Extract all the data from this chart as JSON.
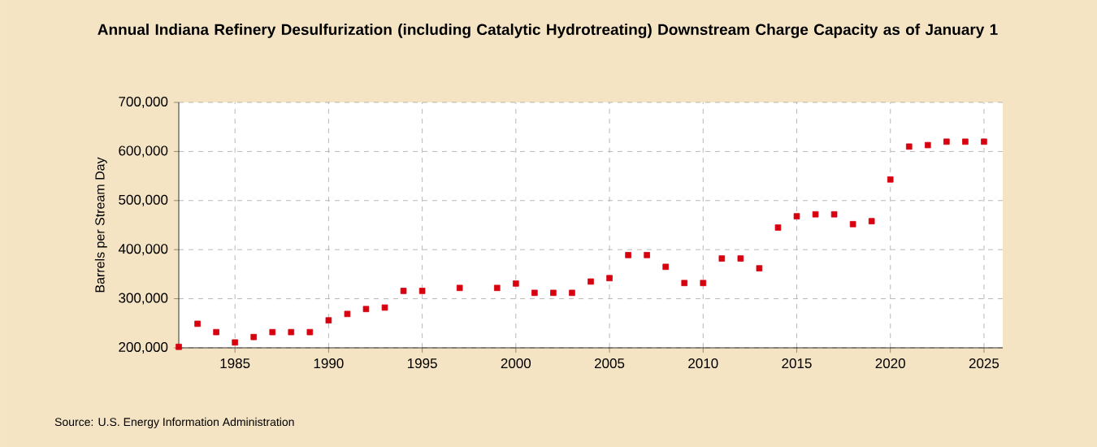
{
  "chart_data": {
    "type": "scatter",
    "title": "Annual Indiana Refinery Desulfurization (including Catalytic Hydrotreating) Downstream Charge Capacity as of January 1",
    "ylabel": "Barrels per Stream Day",
    "annotations": [
      "Source: U.S. Energy Information Administration"
    ],
    "x": [
      1982,
      1983,
      1984,
      1985,
      1986,
      1987,
      1988,
      1989,
      1990,
      1991,
      1992,
      1993,
      1994,
      1995,
      1997,
      1999,
      2000,
      2001,
      2002,
      2003,
      2004,
      2005,
      2006,
      2007,
      2008,
      2009,
      2010,
      2011,
      2012,
      2013,
      2014,
      2015,
      2016,
      2017,
      2018,
      2019,
      2020,
      2021,
      2022,
      2023,
      2024,
      2025
    ],
    "series": [
      {
        "color": "#d7000f",
        "values": [
          202000,
          249000,
          232000,
          211000,
          222000,
          232000,
          232000,
          232000,
          256000,
          269000,
          279000,
          282000,
          316000,
          316000,
          322000,
          322000,
          331000,
          312000,
          312000,
          312000,
          335000,
          342000,
          389000,
          389000,
          365000,
          332000,
          332000,
          382000,
          382000,
          362000,
          445000,
          468000,
          472000,
          472000,
          452000,
          458000,
          543000,
          610000,
          613000,
          620000,
          620000,
          620000
        ]
      }
    ],
    "xlim": [
      1982,
      2026
    ],
    "ylim": [
      200000,
      700000
    ],
    "xticks": [
      1985,
      1990,
      1995,
      2000,
      2005,
      2010,
      2015,
      2020,
      2025
    ],
    "yticks": [
      {
        "value": 200000,
        "label": "200,000"
      },
      {
        "value": 300000,
        "label": "300,000"
      },
      {
        "value": 400000,
        "label": "400,000"
      },
      {
        "value": 500000,
        "label": "500,000"
      },
      {
        "value": 600000,
        "label": "600,000"
      },
      {
        "value": 700000,
        "label": "700,000"
      }
    ],
    "grid": true,
    "marker": "square"
  }
}
